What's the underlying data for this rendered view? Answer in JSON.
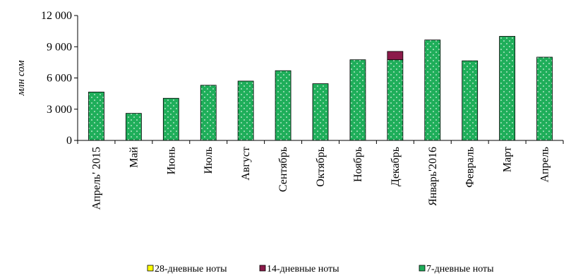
{
  "chart_data": {
    "type": "bar",
    "stacked": true,
    "ylabel": "млн сом",
    "ylim": [
      0,
      12000
    ],
    "yticks": [
      {
        "value": 0,
        "label": "0"
      },
      {
        "value": 3000,
        "label": "3 000"
      },
      {
        "value": 6000,
        "label": "6 000"
      },
      {
        "value": 9000,
        "label": "9 000"
      },
      {
        "value": 12000,
        "label": "12 000"
      }
    ],
    "categories": [
      "Апрель' 2015",
      "Май",
      "Июнь",
      "Июль",
      "Август",
      "Сентябрь",
      "Октябрь",
      "Ноябрь",
      "Декабрь",
      "Январь'2016",
      "Февраль",
      "Март",
      "Апрель"
    ],
    "series": [
      {
        "name": "7-дневные ноты",
        "color": "#1fae5a",
        "values": [
          4650,
          2600,
          4050,
          5300,
          5700,
          6700,
          5450,
          7750,
          7750,
          9650,
          7650,
          10000,
          8000
        ]
      },
      {
        "name": "14-дневные ноты",
        "color": "#8b1a4a",
        "values": [
          0,
          0,
          0,
          0,
          0,
          0,
          0,
          0,
          800,
          0,
          0,
          0,
          0
        ]
      },
      {
        "name": "28-дневные ноты",
        "color": "#ffff00",
        "values": [
          0,
          0,
          0,
          0,
          0,
          0,
          0,
          0,
          0,
          0,
          0,
          0,
          0
        ]
      }
    ],
    "legend": {
      "position": "bottom",
      "order": [
        "28-дневные ноты",
        "14-дневные ноты",
        "7-дневные ноты"
      ]
    },
    "grid": false
  }
}
